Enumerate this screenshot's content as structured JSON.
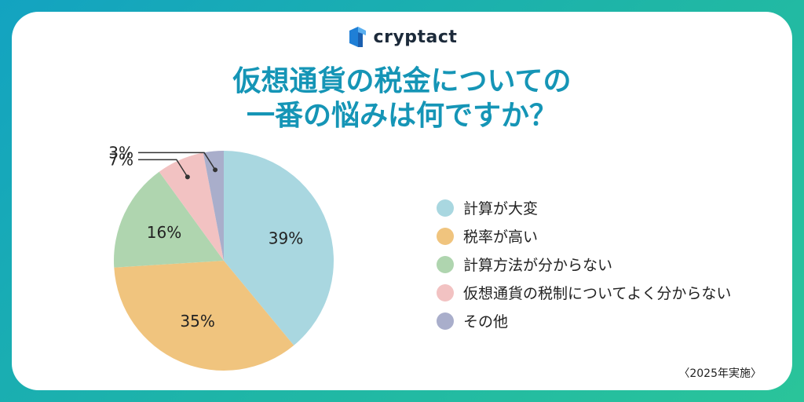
{
  "brand": {
    "name": "cryptact",
    "logo_icon": "cryptact-logo-icon"
  },
  "title_lines": [
    "仮想通貨の税金についての",
    "一番の悩みは何ですか？"
  ],
  "footnote": "〈2025年実施〉",
  "colors": {
    "title": "#1595b6",
    "frame_gradient": [
      "#13a3c1",
      "#2ac49a"
    ]
  },
  "chart_data": {
    "type": "pie",
    "title": "仮想通貨の税金についての一番の悩みは何ですか？",
    "series": [
      {
        "name": "計算が大変",
        "value": 39,
        "label": "39%",
        "color": "#a9d7e0"
      },
      {
        "name": "税率が高い",
        "value": 35,
        "label": "35%",
        "color": "#f0c47e"
      },
      {
        "name": "計算方法が分からない",
        "value": 16,
        "label": "16%",
        "color": "#afd5af"
      },
      {
        "name": "仮想通貨の税制についてよく分からない",
        "value": 7,
        "label": "7%",
        "color": "#f2c2c2"
      },
      {
        "name": "その他",
        "value": 3,
        "label": "3%",
        "color": "#a9aecb"
      }
    ],
    "start": "12 o'clock",
    "direction": "clockwise",
    "legend_position": "right"
  }
}
